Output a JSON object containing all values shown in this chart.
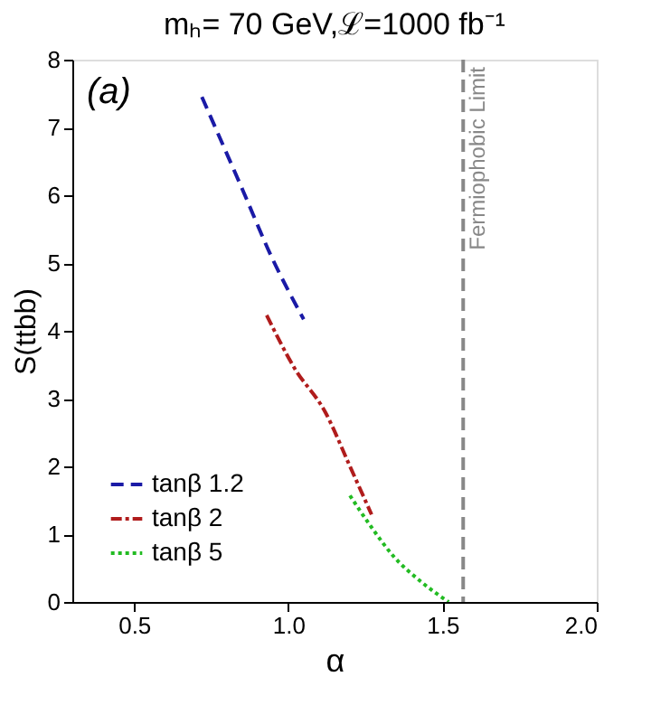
{
  "chart_data": {
    "type": "line",
    "title": "mₕ= 70 GeV,ℒ=1000 fb⁻¹",
    "xlabel": "α",
    "ylabel": "S(ttbb)",
    "annotations": [
      "(a)"
    ],
    "xlim": [
      0.3,
      2.0
    ],
    "xticks": [
      0.5,
      {
        "value": 1.0,
        "label": "1.0"
      },
      1.5,
      {
        "value": 2.0,
        "label": "2.0"
      }
    ],
    "ylim": [
      0,
      8
    ],
    "yticks": [
      0,
      1,
      2,
      3,
      4,
      5,
      6,
      7,
      8
    ],
    "grid": false,
    "legend": "bottom left",
    "series": [
      {
        "name": "tanβ  1.2",
        "color": "#1a1aa6",
        "line_style": "dashed",
        "x": [
          0.72,
          0.85,
          0.95,
          1.05
        ],
        "values": [
          7.45,
          6.1,
          5.05,
          4.17
        ]
      },
      {
        "name": "tanβ   2",
        "color": "#b01c1c",
        "line_style": "dashdot",
        "x": [
          0.93,
          1.02,
          1.12,
          1.2,
          1.27
        ],
        "values": [
          4.23,
          3.45,
          2.8,
          2.0,
          1.29
        ]
      },
      {
        "name": "tanβ   5",
        "color": "#22bb22",
        "line_style": "dotted",
        "x": [
          1.2,
          1.27,
          1.34,
          1.43,
          1.52
        ],
        "values": [
          1.57,
          1.1,
          0.68,
          0.3,
          0.0
        ]
      }
    ],
    "ref_lines": [
      {
        "axis": "x",
        "value": 1.567,
        "label": "Fermiophobic Limit",
        "color": "#888888",
        "line_style": "dashed"
      }
    ]
  }
}
